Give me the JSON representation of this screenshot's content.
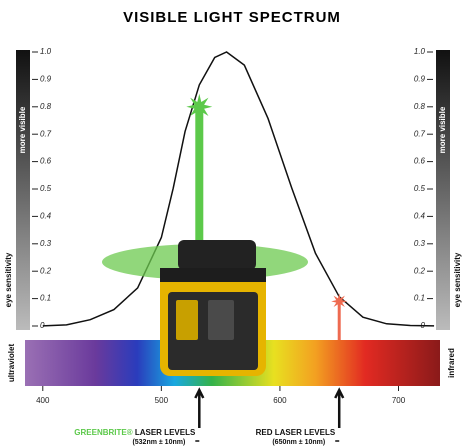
{
  "chart_data": {
    "type": "line",
    "title": "VISIBLE LIGHT SPECTRUM",
    "x": [
      400,
      420,
      440,
      460,
      480,
      500,
      510,
      520,
      532,
      545,
      555,
      570,
      590,
      610,
      630,
      650,
      670,
      690,
      710,
      730
    ],
    "series": [
      {
        "color": "#111111",
        "values": [
          0.0004,
          0.004,
          0.023,
          0.06,
          0.139,
          0.323,
          0.503,
          0.71,
          0.88,
          0.98,
          1,
          0.952,
          0.757,
          0.503,
          0.265,
          0.107,
          0.032,
          0.008,
          0.002,
          0.0005
        ]
      }
    ],
    "xlim": [
      385,
      735
    ],
    "xticks": [
      400,
      500,
      600,
      700
    ],
    "ylim": [
      0,
      1
    ],
    "yticks": [
      0,
      0.1,
      0.2,
      0.3,
      0.4,
      0.5,
      0.6,
      0.7,
      0.8,
      0.9,
      {
        "value": 1,
        "label": "1.0"
      }
    ],
    "side_label_top": "more visible",
    "side_label": "eye sensitivity",
    "spectrum_left": "ultraviolet",
    "spectrum_right": "infrared",
    "markers": [
      {
        "x": 532,
        "value": 0.8,
        "color": "#5cc94a",
        "brand": "GREENBRITE®",
        "label": "LASER LEVELS",
        "range": "(532nm ± 10nm)"
      },
      {
        "x": 650,
        "value": 0.09,
        "color": "#ee6a50",
        "label": "RED LASER LEVELS",
        "range": "(650nm ± 10nm)"
      }
    ]
  }
}
